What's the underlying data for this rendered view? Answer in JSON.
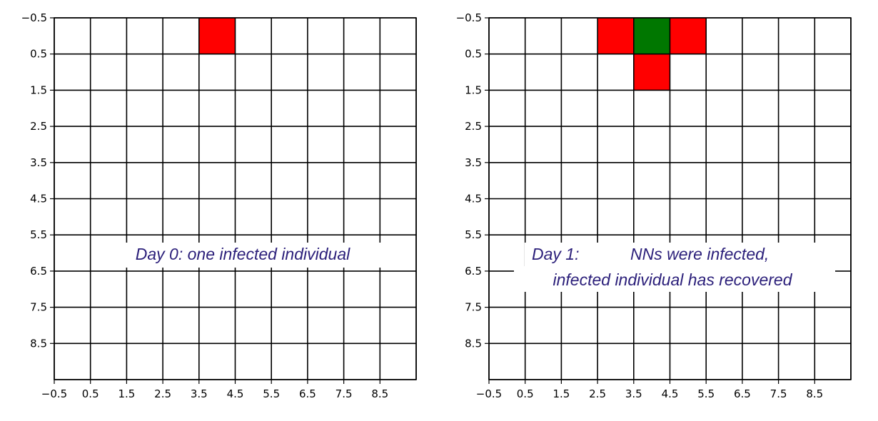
{
  "chart_data": [
    {
      "type": "heatmap",
      "grid": true,
      "xlim": [
        -0.5,
        9.5
      ],
      "ylim": [
        9.5,
        -0.5
      ],
      "y_inverted": true,
      "x_ticks": [
        "−0.5",
        "0.5",
        "1.5",
        "2.5",
        "3.5",
        "4.5",
        "5.5",
        "6.5",
        "7.5",
        "8.5"
      ],
      "y_ticks": [
        "−0.5",
        "0.5",
        "1.5",
        "2.5",
        "3.5",
        "4.5",
        "5.5",
        "6.5",
        "7.5",
        "8.5"
      ],
      "cells": [
        {
          "row": 0,
          "col": 4,
          "state": "infected"
        }
      ],
      "annotation_lines": [
        "Day 0: one infected individual"
      ]
    },
    {
      "type": "heatmap",
      "grid": true,
      "xlim": [
        -0.5,
        9.5
      ],
      "ylim": [
        9.5,
        -0.5
      ],
      "y_inverted": true,
      "x_ticks": [
        "−0.5",
        "0.5",
        "1.5",
        "2.5",
        "3.5",
        "4.5",
        "5.5",
        "6.5",
        "7.5",
        "8.5"
      ],
      "y_ticks": [
        "−0.5",
        "0.5",
        "1.5",
        "2.5",
        "3.5",
        "4.5",
        "5.5",
        "6.5",
        "7.5",
        "8.5"
      ],
      "cells": [
        {
          "row": 0,
          "col": 3,
          "state": "infected"
        },
        {
          "row": 0,
          "col": 4,
          "state": "recovered"
        },
        {
          "row": 0,
          "col": 5,
          "state": "infected"
        },
        {
          "row": 1,
          "col": 4,
          "state": "infected"
        }
      ],
      "annotation_lines": [
        "Day 1: ",
        "NNs were infected,",
        "infected individual has recovered"
      ]
    }
  ],
  "colors": {
    "infected": "#ff0000",
    "recovered": "#007700",
    "grid": "#000000",
    "annotation": "#2b1f7a"
  }
}
